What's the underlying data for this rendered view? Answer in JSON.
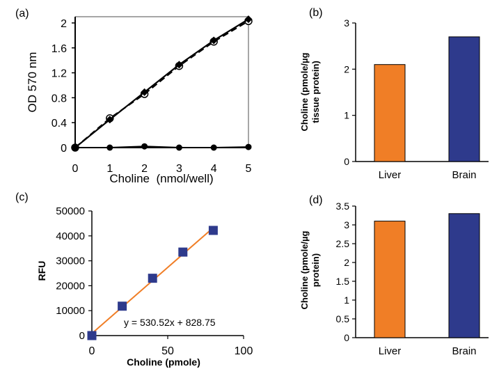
{
  "colors": {
    "orange": "#f07e26",
    "blue": "#2e3a8c",
    "fit_line": "#f07e26",
    "black": "#000000",
    "frame_gray": "#a6a6a6"
  },
  "chart_data": [
    {
      "panel": "(a)",
      "type": "line",
      "xlabel": "Choline  (nmol/well)",
      "ylabel": "OD 570 nm",
      "x_ticks": [
        "0",
        "1",
        "2",
        "3",
        "4",
        "5"
      ],
      "y_ticks": [
        "0",
        "0.4",
        "0.8",
        "1.2",
        "1.6",
        "2"
      ],
      "xlim": [
        0,
        5
      ],
      "ylim": [
        0,
        2.1
      ],
      "series": [
        {
          "marker": "open-circle",
          "dash": "dashed",
          "x": [
            0,
            1,
            2,
            3,
            4,
            5
          ],
          "y": [
            0.0,
            0.47,
            0.86,
            1.31,
            1.7,
            2.03
          ]
        },
        {
          "marker": "diamond",
          "dash": "solid",
          "x": [
            0,
            1,
            2,
            3,
            4,
            5
          ],
          "y": [
            0.0,
            0.45,
            0.89,
            1.33,
            1.72,
            2.06
          ]
        },
        {
          "marker": "filled-circle",
          "dash": "solid",
          "x": [
            0,
            1,
            2,
            3,
            4,
            5
          ],
          "y": [
            0.0,
            0.0,
            0.02,
            0.0,
            0.0,
            0.01
          ]
        }
      ],
      "grid": false
    },
    {
      "panel": "(b)",
      "type": "bar",
      "categories": [
        "Liver",
        "Brain"
      ],
      "values": [
        2.1,
        2.7
      ],
      "colors": [
        "#f07e26",
        "#2e3a8c"
      ],
      "ylabel_lines": [
        "Choline (pmole/µg",
        "tissue protein)"
      ],
      "y_ticks": [
        "0",
        "1",
        "2",
        "3"
      ],
      "ylim": [
        0,
        3
      ]
    },
    {
      "panel": "(c)",
      "type": "scatter",
      "xlabel": "Choline (pmole)",
      "ylabel": "RFU",
      "x_ticks": [
        "0",
        "50",
        "100"
      ],
      "y_ticks": [
        "0",
        "10000",
        "20000",
        "30000",
        "40000",
        "50000"
      ],
      "xlim": [
        0,
        100
      ],
      "ylim": [
        0,
        50000
      ],
      "points": {
        "x": [
          0,
          20,
          40,
          60,
          80
        ],
        "y": [
          0,
          11800,
          23000,
          33500,
          42200
        ]
      },
      "fit": {
        "slope": 530.52,
        "intercept": 828.75,
        "label": "y = 530.52x + 828.75"
      }
    },
    {
      "panel": "(d)",
      "type": "bar",
      "categories": [
        "Liver",
        "Brain"
      ],
      "values": [
        3.1,
        3.3
      ],
      "colors": [
        "#f07e26",
        "#2e3a8c"
      ],
      "ylabel_lines": [
        "Choline (pmole/µg",
        "protein)"
      ],
      "y_ticks": [
        "0",
        "0.5",
        "1",
        "1.5",
        "2",
        "2.5",
        "3",
        "3.5"
      ],
      "ylim": [
        0,
        3.5
      ]
    }
  ]
}
